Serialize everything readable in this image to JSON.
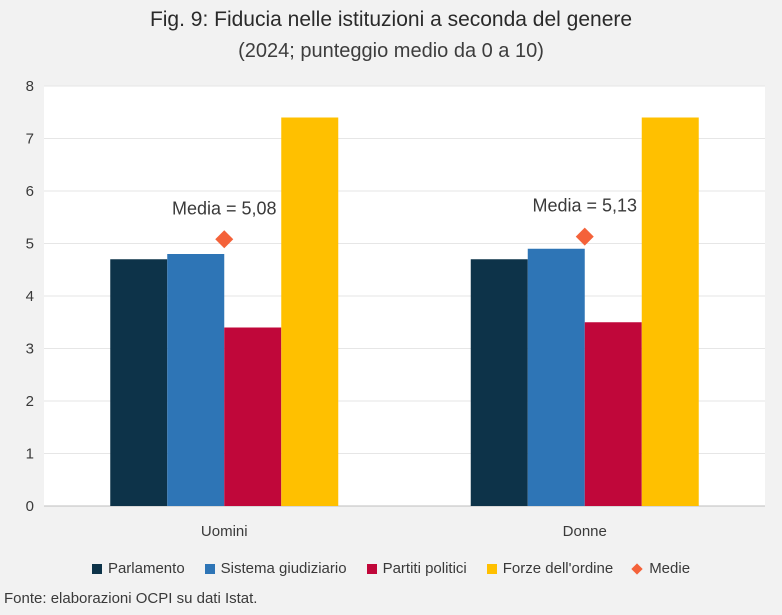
{
  "chart_data": {
    "type": "bar",
    "title": "Fig. 9: Fiducia nelle istituzioni a seconda del genere",
    "subtitle": "(2024; punteggio medio da 0 a 10)",
    "categories": [
      "Uomini",
      "Donne"
    ],
    "series": [
      {
        "name": "Parlamento",
        "values": [
          4.7,
          4.7
        ],
        "color": "#0d3349"
      },
      {
        "name": "Sistema giudiziario",
        "values": [
          4.8,
          4.9
        ],
        "color": "#2e75b6"
      },
      {
        "name": "Partiti politici",
        "values": [
          3.4,
          3.5
        ],
        "color": "#c0073a"
      },
      {
        "name": "Forze dell'ordine",
        "values": [
          7.4,
          7.4
        ],
        "color": "#ffc000"
      }
    ],
    "markers": {
      "name": "Medie",
      "values": [
        5.08,
        5.13
      ],
      "labels": [
        "Media = 5,08",
        "Media = 5,13"
      ],
      "color": "#f4623a",
      "shape": "diamond"
    },
    "ylim": [
      0,
      8
    ],
    "yticks": [
      "0",
      "1",
      "2",
      "3",
      "4",
      "5",
      "6",
      "7",
      "8"
    ],
    "grid": true,
    "legend": "bottom",
    "xlabel": "",
    "ylabel": ""
  },
  "source": "Fonte: elaborazioni OCPI su dati Istat."
}
